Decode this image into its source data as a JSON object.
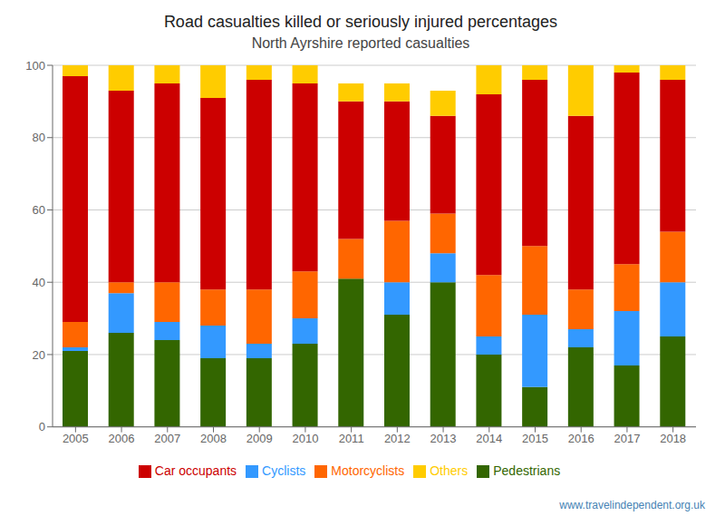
{
  "chart_data": {
    "type": "bar",
    "stacked": true,
    "title": "Road casualties killed or seriously injured percentages",
    "subtitle": "North Ayrshire reported casualties",
    "categories": [
      "2005",
      "2006",
      "2007",
      "2008",
      "2009",
      "2010",
      "2011",
      "2012",
      "2013",
      "2014",
      "2015",
      "2016",
      "2017",
      "2018"
    ],
    "series": [
      {
        "name": "Pedestrians",
        "color": "#336600",
        "values": [
          21,
          26,
          24,
          19,
          19,
          23,
          41,
          31,
          40,
          20,
          11,
          22,
          17,
          25
        ]
      },
      {
        "name": "Cyclists",
        "color": "#3399ff",
        "values": [
          1,
          11,
          5,
          9,
          4,
          7,
          0,
          9,
          8,
          5,
          20,
          5,
          15,
          15
        ]
      },
      {
        "name": "Motorcyclists",
        "color": "#ff6600",
        "values": [
          7,
          3,
          11,
          10,
          15,
          13,
          11,
          17,
          11,
          17,
          19,
          11,
          13,
          14
        ]
      },
      {
        "name": "Car occupants",
        "color": "#cc0000",
        "values": [
          68,
          53,
          55,
          53,
          58,
          52,
          38,
          33,
          27,
          50,
          46,
          48,
          53,
          42
        ]
      },
      {
        "name": "Others",
        "color": "#ffcc00",
        "values": [
          3,
          7,
          5,
          9,
          4,
          5,
          5,
          5,
          7,
          8,
          4,
          14,
          2,
          4
        ]
      }
    ],
    "ylim": [
      0,
      100
    ],
    "yticks": [
      0,
      20,
      40,
      60,
      80,
      100
    ],
    "grid": true,
    "legend": "bottom",
    "annotations": [
      "www.travelindependent.org.uk"
    ]
  }
}
